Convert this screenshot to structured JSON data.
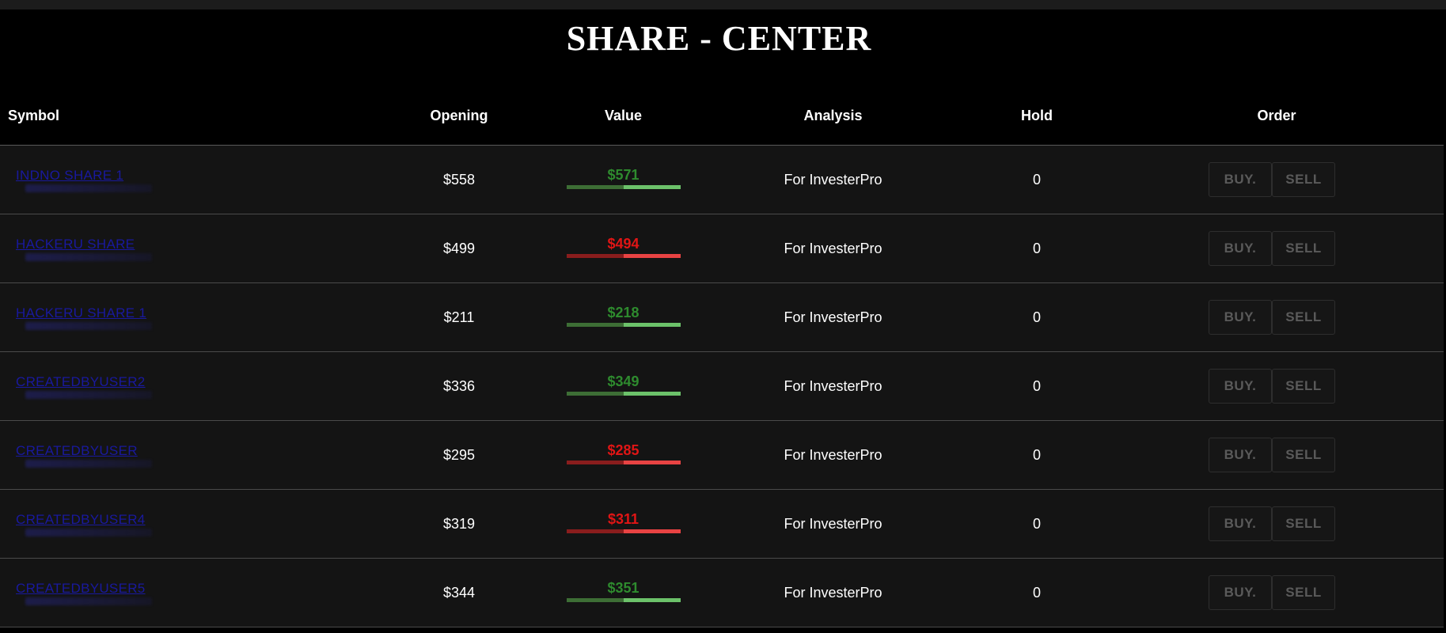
{
  "page": {
    "title": "SHARE - CENTER"
  },
  "table": {
    "headers": {
      "symbol": "Symbol",
      "opening": "Opening",
      "value": "Value",
      "analysis": "Analysis",
      "hold": "Hold",
      "order": "Order"
    },
    "rows": [
      {
        "symbol": "INDNO SHARE 1",
        "opening": "$558",
        "value": "$571",
        "trend": "up",
        "analysis": "For InvesterPro",
        "hold": "0",
        "buy_label": "BUY.",
        "sell_label": "SELL"
      },
      {
        "symbol": "HACKERU SHARE",
        "opening": "$499",
        "value": "$494",
        "trend": "down",
        "analysis": "For InvesterPro",
        "hold": "0",
        "buy_label": "BUY.",
        "sell_label": "SELL"
      },
      {
        "symbol": "HACKERU SHARE 1",
        "opening": "$211",
        "value": "$218",
        "trend": "up",
        "analysis": "For InvesterPro",
        "hold": "0",
        "buy_label": "BUY.",
        "sell_label": "SELL"
      },
      {
        "symbol": "CREATEDBYUSER2",
        "opening": "$336",
        "value": "$349",
        "trend": "up",
        "analysis": "For InvesterPro",
        "hold": "0",
        "buy_label": "BUY.",
        "sell_label": "SELL"
      },
      {
        "symbol": "CREATEDBYUSER",
        "opening": "$295",
        "value": "$285",
        "trend": "down",
        "analysis": "For InvesterPro",
        "hold": "0",
        "buy_label": "BUY.",
        "sell_label": "SELL"
      },
      {
        "symbol": "CREATEDBYUSER4",
        "opening": "$319",
        "value": "$311",
        "trend": "down",
        "analysis": "For InvesterPro",
        "hold": "0",
        "buy_label": "BUY.",
        "sell_label": "SELL"
      },
      {
        "symbol": "CREATEDBYUSER5",
        "opening": "$344",
        "value": "$351",
        "trend": "up",
        "analysis": "For InvesterPro",
        "hold": "0",
        "buy_label": "BUY.",
        "sell_label": "SELL"
      }
    ]
  },
  "colors": {
    "background": "#000000",
    "row_background": "#141414",
    "symbol_link": "#1a1aa6",
    "value_up": "#2e8b2e",
    "value_down": "#e01515",
    "button_text_disabled": "#5a5a5a"
  }
}
